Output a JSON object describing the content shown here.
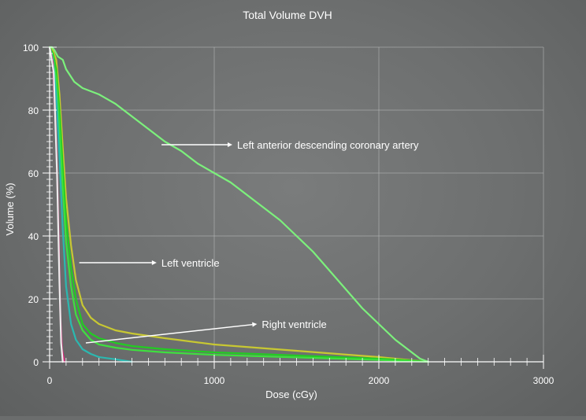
{
  "chart_data": {
    "type": "line",
    "title": "Total Volume DVH",
    "xlabel": "Dose (cGy)",
    "ylabel": "Volume (%)",
    "xlim": [
      0,
      3000
    ],
    "ylim": [
      0,
      100
    ],
    "xticks": [
      0,
      1000,
      2000,
      3000
    ],
    "yticks": [
      0,
      20,
      40,
      60,
      80,
      100
    ],
    "grid": true,
    "series": [
      {
        "color": "#c8c832",
        "x": [
          0,
          20,
          40,
          60,
          80,
          100,
          130,
          160,
          200,
          250,
          300,
          400,
          500,
          700,
          1000,
          1500,
          2000,
          2200,
          2300
        ],
        "y": [
          100,
          99,
          96,
          85,
          68,
          52,
          37,
          26,
          18,
          14,
          12,
          10,
          9,
          7.5,
          5.5,
          3.5,
          1.5,
          0.5,
          0
        ]
      },
      {
        "color": "#22cc22",
        "x": [
          0,
          20,
          40,
          60,
          80,
          100,
          130,
          160,
          200,
          250,
          300,
          400,
          500,
          700,
          1000,
          1500,
          2000,
          2200,
          2300
        ],
        "y": [
          100,
          98,
          93,
          80,
          62,
          45,
          30,
          20,
          12,
          9,
          7.5,
          6,
          5,
          4,
          3,
          2,
          1,
          0.4,
          0
        ]
      },
      {
        "color": "#3ee03e",
        "x": [
          0,
          20,
          40,
          60,
          80,
          100,
          130,
          160,
          200,
          250,
          300,
          400,
          500,
          700,
          1000,
          1500,
          2000,
          2300
        ],
        "y": [
          100,
          97,
          90,
          74,
          55,
          38,
          24,
          15,
          10,
          7,
          5.5,
          4.5,
          3.8,
          3,
          2.2,
          1.4,
          0.6,
          0
        ]
      },
      {
        "color": "#2bb8b0",
        "x": [
          0,
          20,
          40,
          60,
          80,
          100,
          130,
          160,
          200,
          250,
          300,
          400,
          500
        ],
        "y": [
          100,
          96,
          85,
          65,
          42,
          24,
          12,
          7,
          4,
          2.5,
          1.5,
          0.8,
          0
        ]
      },
      {
        "color": "#d52a7a",
        "x": [
          0,
          20,
          40,
          55,
          65,
          75,
          90
        ],
        "y": [
          100,
          95,
          70,
          40,
          15,
          4,
          0
        ]
      },
      {
        "color": "#ececec",
        "x": [
          0,
          25,
          45,
          60,
          70,
          80
        ],
        "y": [
          100,
          92,
          60,
          25,
          6,
          0
        ]
      },
      {
        "color": "#7cf07c",
        "x": [
          0,
          15,
          30,
          50,
          80,
          100,
          150,
          200,
          300,
          400,
          500,
          600,
          700,
          800,
          900,
          1000,
          1100,
          1200,
          1300,
          1400,
          1500,
          1600,
          1700,
          1800,
          1900,
          2000,
          2100,
          2200,
          2250,
          2300
        ],
        "y": [
          100,
          100,
          99,
          97,
          96,
          93,
          89,
          87,
          85,
          82,
          78,
          74,
          70,
          67,
          63,
          60,
          57,
          53,
          49,
          45,
          40,
          35,
          29,
          23,
          17,
          12,
          7,
          3,
          1,
          0
        ]
      }
    ],
    "annotations": [
      {
        "text": "Left anterior descending coronary artery",
        "arrow_from": [
          680,
          69
        ],
        "arrow_to": [
          1110,
          69
        ]
      },
      {
        "text": "Left ventricle",
        "arrow_from": [
          180,
          31.5
        ],
        "arrow_to": [
          650,
          31.5
        ]
      },
      {
        "text": "Right ventricle",
        "arrow_from": [
          220,
          6
        ],
        "arrow_to": [
          1260,
          12
        ]
      }
    ]
  }
}
